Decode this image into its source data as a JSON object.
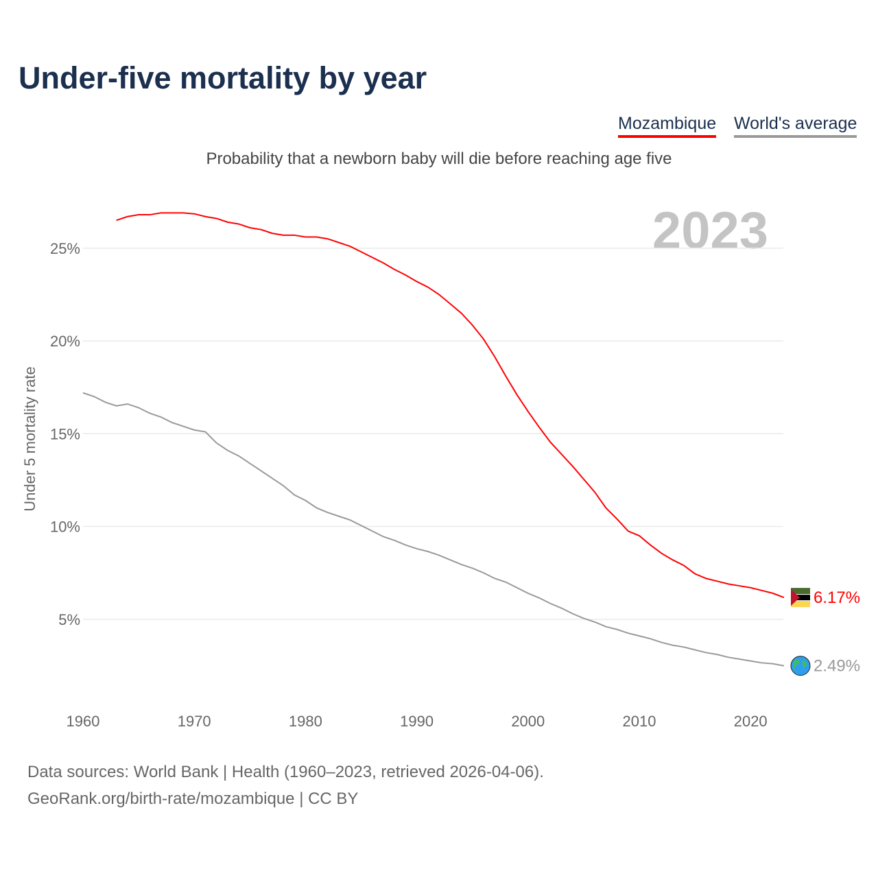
{
  "chart_data": {
    "type": "line",
    "title": "Under-five mortality by year",
    "subtitle": "Probability that a newborn baby will die before reaching age five",
    "ylabel": "Under 5 mortality rate",
    "xlabel": "",
    "xlim": [
      1960,
      2023
    ],
    "ylim": [
      0,
      27
    ],
    "xticks": [
      1960,
      1970,
      1980,
      1990,
      2000,
      2010,
      2020
    ],
    "yticks": [
      5,
      10,
      15,
      20,
      25
    ],
    "ytick_labels": [
      "5%",
      "10%",
      "15%",
      "20%",
      "25%"
    ],
    "year_label": "2023",
    "grid": true,
    "legend_placement": "top-right",
    "series": [
      {
        "name": "Mozambique",
        "color": "#ff0000",
        "end_label": "6.17%",
        "start_year": 1963,
        "values": [
          26.5,
          26.7,
          26.8,
          26.8,
          26.9,
          26.9,
          26.9,
          26.85,
          26.7,
          26.6,
          26.4,
          26.3,
          26.1,
          26.0,
          25.8,
          25.7,
          25.7,
          25.6,
          25.6,
          25.5,
          25.3,
          25.1,
          24.8,
          24.5,
          24.2,
          23.85,
          23.55,
          23.2,
          22.9,
          22.5,
          22.0,
          21.5,
          20.85,
          20.1,
          19.15,
          18.1,
          17.1,
          16.2,
          15.35,
          14.55,
          13.9,
          13.25,
          12.55,
          11.85,
          11.0,
          10.4,
          9.75,
          9.5,
          9.0,
          8.55,
          8.2,
          7.9,
          7.45,
          7.2,
          7.05,
          6.9,
          6.8,
          6.7,
          6.55,
          6.4,
          6.17
        ]
      },
      {
        "name": "World's average",
        "color": "#999999",
        "end_label": "2.49%",
        "start_year": 1960,
        "values": [
          17.2,
          17.0,
          16.7,
          16.5,
          16.6,
          16.4,
          16.1,
          15.9,
          15.6,
          15.4,
          15.2,
          15.1,
          14.5,
          14.1,
          13.8,
          13.4,
          13.0,
          12.6,
          12.2,
          11.7,
          11.4,
          11.0,
          10.75,
          10.55,
          10.35,
          10.05,
          9.75,
          9.45,
          9.25,
          9.0,
          8.8,
          8.65,
          8.45,
          8.2,
          7.95,
          7.75,
          7.5,
          7.2,
          7.0,
          6.7,
          6.4,
          6.15,
          5.85,
          5.6,
          5.3,
          5.05,
          4.85,
          4.6,
          4.45,
          4.25,
          4.1,
          3.95,
          3.75,
          3.6,
          3.5,
          3.35,
          3.2,
          3.1,
          2.95,
          2.85,
          2.75,
          2.65,
          2.6,
          2.49
        ]
      }
    ]
  },
  "source_line1": "Data sources: World Bank | Health (1960–2023, retrieved 2026-04-06).",
  "source_line2": "GeoRank.org/birth-rate/mozambique | CC BY"
}
